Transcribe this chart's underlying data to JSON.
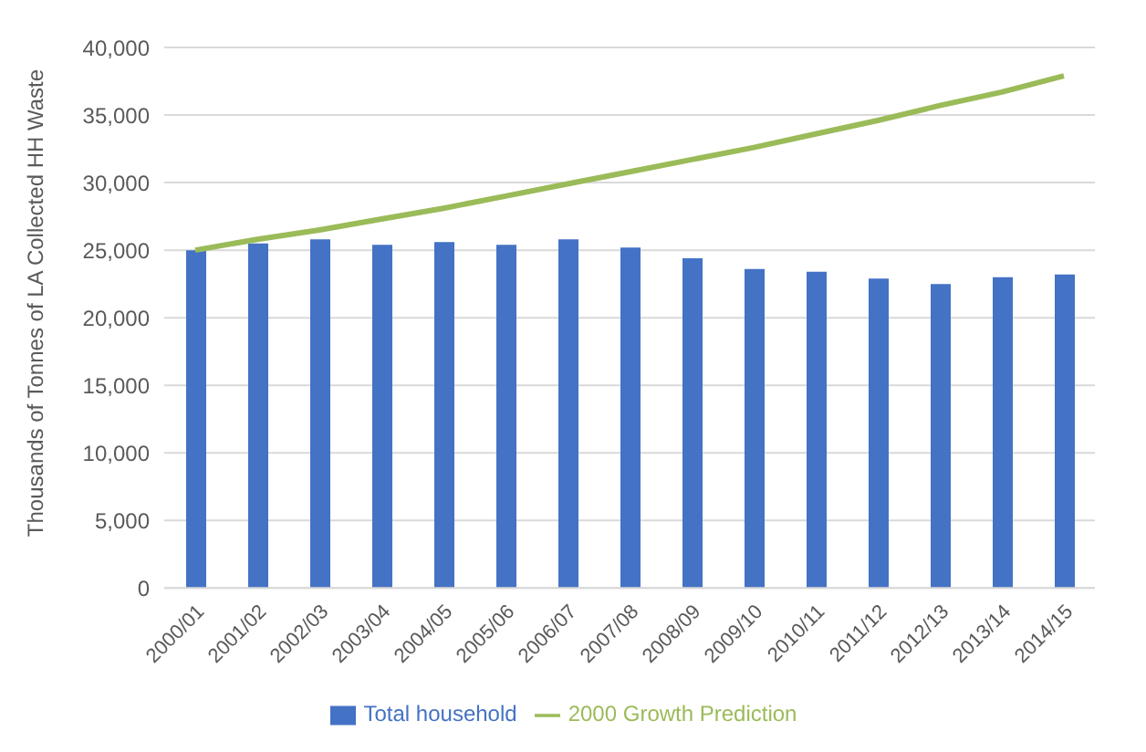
{
  "chart_data": {
    "type": "bar",
    "ylabel": "Thousands of Tonnes of LA Collected HH Waste",
    "categories": [
      "2000/01",
      "2001/02",
      "2002/03",
      "2003/04",
      "2004/05",
      "2005/06",
      "2006/07",
      "2007/08",
      "2008/09",
      "2009/10",
      "2010/11",
      "2011/12",
      "2012/13",
      "2013/14",
      "2014/15"
    ],
    "series": [
      {
        "name": "Total household",
        "color": "#4472c4",
        "values": [
          25000,
          25500,
          25800,
          25400,
          25600,
          25400,
          25800,
          25200,
          24400,
          23600,
          23400,
          22900,
          22500,
          23000,
          23200
        ]
      },
      {
        "name": "2000 Growth Prediction",
        "type": "line",
        "color": "#9bbb59",
        "values": [
          25000,
          25800,
          26500,
          27300,
          28100,
          29000,
          29900,
          30800,
          31700,
          32600,
          33600,
          34600,
          35700,
          36700,
          37900
        ]
      }
    ],
    "ylim": [
      0,
      40000
    ],
    "yticks": [
      0,
      {
        "value": 5000,
        "label": "5,000"
      },
      {
        "value": 10000,
        "label": "10,000"
      },
      {
        "value": 15000,
        "label": "15,000"
      },
      {
        "value": 20000,
        "label": "20,000"
      },
      {
        "value": 25000,
        "label": "25,000"
      },
      {
        "value": 30000,
        "label": "30,000"
      },
      {
        "value": 35000,
        "label": "35,000"
      },
      {
        "value": 40000,
        "label": "40,000"
      }
    ],
    "grid": "y",
    "legend": "bottom",
    "marker": "none"
  }
}
